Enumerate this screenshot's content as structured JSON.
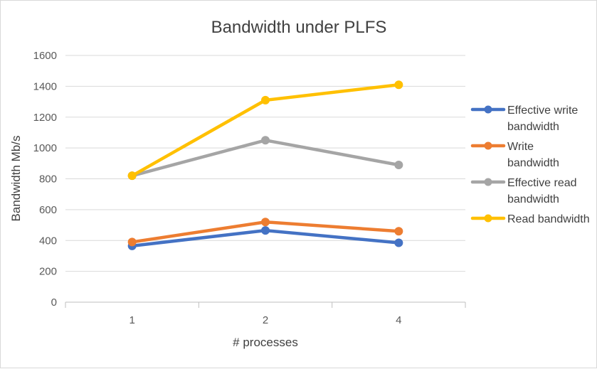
{
  "chart_data": {
    "type": "line",
    "title": "Bandwidth under PLFS",
    "xlabel": "# processes",
    "ylabel": "Bandwidth Mb/s",
    "categories": [
      "1",
      "2",
      "4"
    ],
    "ylim": [
      0,
      1600
    ],
    "yticks": [
      0,
      200,
      400,
      600,
      800,
      1000,
      1200,
      1400,
      1600
    ],
    "grid": true,
    "legend_position": "right",
    "series": [
      {
        "name": "Effective write bandwidth",
        "legend_lines": [
          "Effective write",
          "bandwidth"
        ],
        "color": "#4472C4",
        "values": [
          365,
          465,
          385
        ]
      },
      {
        "name": "Write bandwidth",
        "legend_lines": [
          "Write",
          "bandwidth"
        ],
        "color": "#ED7D31",
        "values": [
          390,
          520,
          460
        ]
      },
      {
        "name": "Effective read bandwidth",
        "legend_lines": [
          "Effective read",
          "bandwidth"
        ],
        "color": "#A5A5A5",
        "values": [
          820,
          1050,
          890
        ]
      },
      {
        "name": "Read bandwidth",
        "legend_lines": [
          "Read bandwidth"
        ],
        "color": "#FFC000",
        "values": [
          820,
          1310,
          1410
        ]
      }
    ]
  }
}
